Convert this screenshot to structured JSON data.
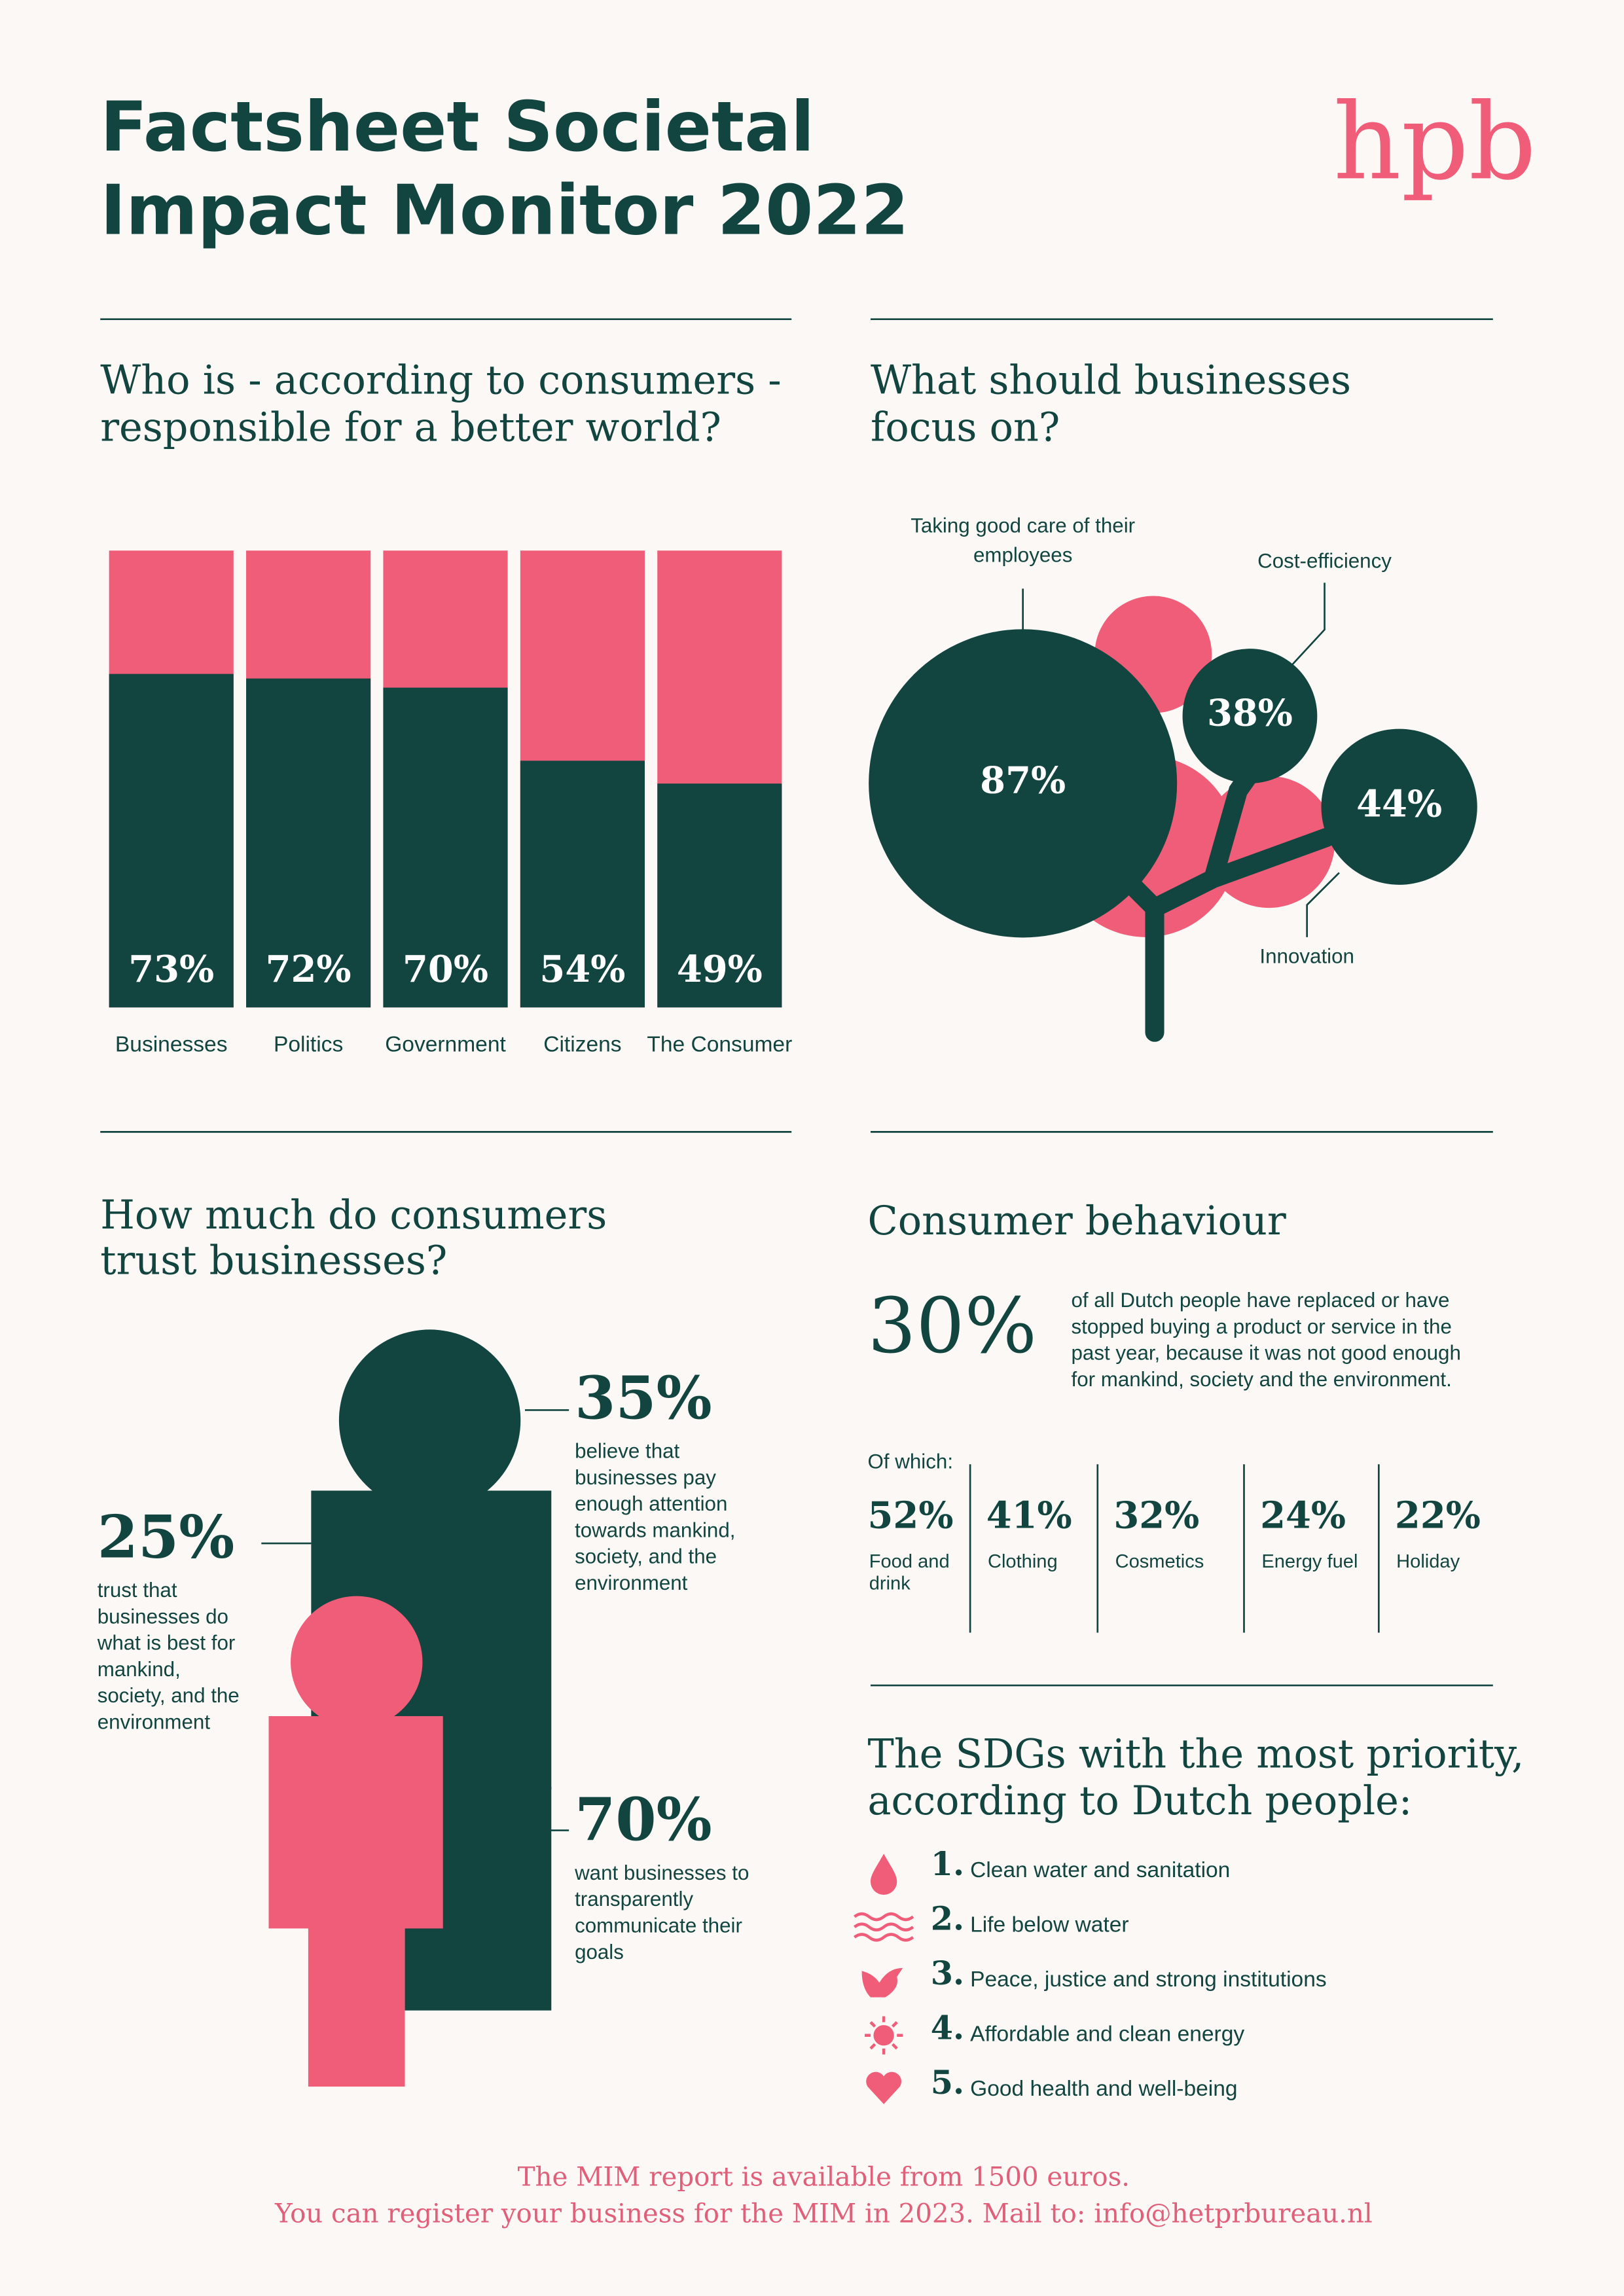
{
  "header": {
    "title": [
      "Factsheet Societal",
      "Impact Monitor 2022"
    ],
    "logo": "hpb"
  },
  "chart_data": [
    {
      "type": "bar",
      "title": [
        "Who is - according to consumers -",
        "responsible for a better world?"
      ],
      "categories": [
        "Businesses",
        "Politics",
        "Government",
        "Citizens",
        "The Consumer"
      ],
      "values": [
        73,
        72,
        70,
        54,
        49
      ],
      "value_labels": [
        "73%",
        "72%",
        "70%",
        "54%",
        "49%"
      ],
      "ylim": [
        0,
        100
      ],
      "color": "#134540",
      "track_color": "#f05d78"
    },
    {
      "type": "bubble",
      "title": [
        "What should businesses",
        "focus on?"
      ],
      "categories": [
        [
          "Taking good care of their",
          "employees"
        ],
        [
          "Cost-efficiency"
        ],
        [
          "Innovation"
        ]
      ],
      "values": [
        87,
        38,
        44
      ],
      "value_labels": [
        "87%",
        "38%",
        "44%"
      ],
      "color": "#134540"
    }
  ],
  "trust": {
    "title": [
      "How much do consumers",
      "trust businesses?"
    ],
    "items": [
      {
        "value": "25%",
        "text": [
          "trust that",
          "businesses do",
          "what is best for",
          "mankind,",
          "society, and the",
          "environment"
        ]
      },
      {
        "value": "35%",
        "text": [
          "believe that",
          "businesses pay",
          "enough attention",
          "towards mankind,",
          "society, and the",
          "environment"
        ]
      },
      {
        "value": "70%",
        "text": [
          "want businesses to",
          "transparently",
          "communicate their",
          "goals"
        ]
      }
    ]
  },
  "behaviour": {
    "title": "Consumer behaviour",
    "value": "30%",
    "text": [
      "of all Dutch people have replaced or have",
      "stopped buying a product or service in the",
      "past year, because it was not good enough",
      "for mankind, society and the environment."
    ],
    "of_which": "Of which:",
    "breakdown": [
      {
        "value": "52%",
        "label": [
          "Food and",
          "drink"
        ]
      },
      {
        "value": "41%",
        "label": [
          "Clothing"
        ]
      },
      {
        "value": "32%",
        "label": [
          "Cosmetics"
        ]
      },
      {
        "value": "24%",
        "label": [
          "Energy fuel"
        ]
      },
      {
        "value": "22%",
        "label": [
          "Holiday"
        ]
      }
    ]
  },
  "sdgs": {
    "title": [
      "The SDGs with the most priority,",
      "according to Dutch people:"
    ],
    "items": [
      {
        "rank": "1.",
        "text": "Clean water and sanitation"
      },
      {
        "rank": "2.",
        "text": "Life below water"
      },
      {
        "rank": "3.",
        "text": "Peace, justice and strong institutions"
      },
      {
        "rank": "4.",
        "text": "Affordable and clean energy"
      },
      {
        "rank": "5.",
        "text": "Good health and well-being"
      }
    ]
  },
  "footer": [
    "The MIM report is available from 1500 euros.",
    "You can register your business for the MIM in 2023. Mail to: info@hetprbureau.nl"
  ]
}
